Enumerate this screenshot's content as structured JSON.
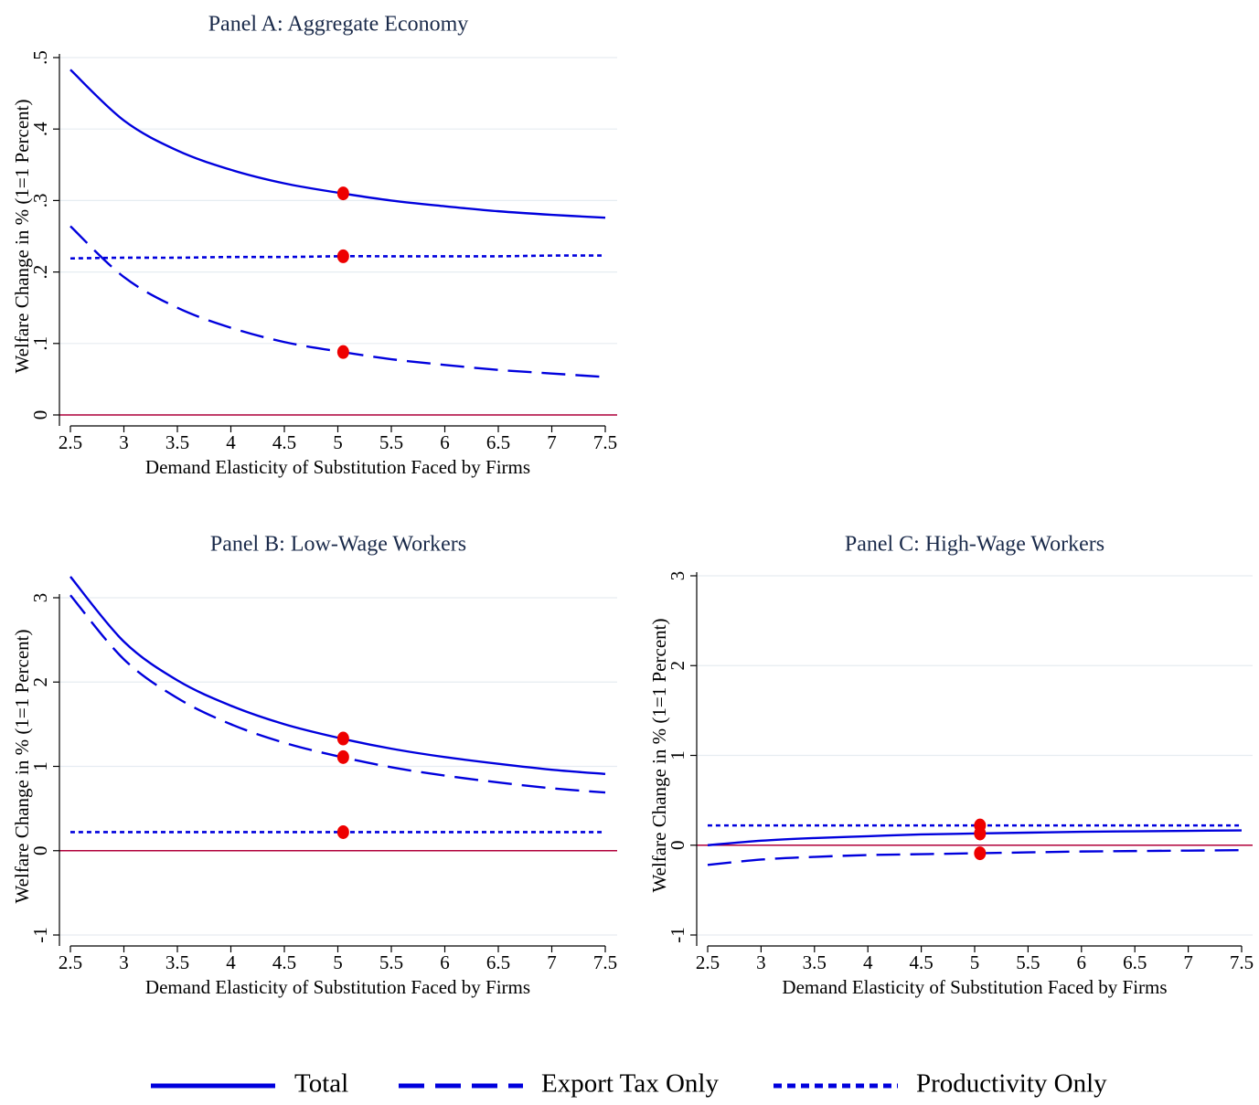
{
  "chart_data": [
    {
      "type": "line",
      "title": "Panel A: Aggregate Economy",
      "xlabel": "Demand Elasticity of Substitution Faced by Firms",
      "ylabel": "Welfare Change in % (1=1 Percent)",
      "xlim": [
        2.5,
        7.5
      ],
      "ylim": [
        0,
        0.5
      ],
      "xticks": [
        2.5,
        3,
        3.5,
        4,
        4.5,
        5,
        5.5,
        6,
        6.5,
        7,
        7.5
      ],
      "xtick_labels": [
        "2.5",
        "3",
        "3.5",
        "4",
        "4.5",
        "5",
        "5.5",
        "6",
        "6.5",
        "7",
        "7.5"
      ],
      "yticks": [
        0,
        0.1,
        0.2,
        0.3,
        0.4,
        0.5
      ],
      "ytick_labels": [
        "0",
        ".1",
        ".2",
        ".3",
        ".4",
        ".5"
      ],
      "grid": true,
      "zero_line": true,
      "x": [
        2.5,
        3,
        3.5,
        4,
        4.5,
        5,
        5.5,
        6,
        6.5,
        7,
        7.5
      ],
      "series": [
        {
          "name": "Total",
          "style": "solid",
          "values": [
            0.483,
            0.412,
            0.37,
            0.343,
            0.324,
            0.311,
            0.3,
            0.292,
            0.285,
            0.28,
            0.276
          ]
        },
        {
          "name": "Export Tax Only",
          "style": "dashed",
          "values": [
            0.264,
            0.193,
            0.15,
            0.122,
            0.102,
            0.089,
            0.078,
            0.07,
            0.063,
            0.058,
            0.053
          ]
        },
        {
          "name": "Productivity Only",
          "style": "dotted",
          "values": [
            0.219,
            0.22,
            0.22,
            0.221,
            0.221,
            0.222,
            0.222,
            0.222,
            0.222,
            0.223,
            0.223
          ]
        }
      ],
      "markers": [
        {
          "x": 5.05,
          "y": 0.31
        },
        {
          "x": 5.05,
          "y": 0.222
        },
        {
          "x": 5.05,
          "y": 0.088
        }
      ]
    },
    {
      "type": "line",
      "title": "Panel B: Low-Wage Workers",
      "xlabel": "Demand Elasticity of Substitution Faced by Firms",
      "ylabel": "Welfare Change in % (1=1 Percent)",
      "xlim": [
        2.5,
        7.5
      ],
      "ylim": [
        -1,
        3
      ],
      "xticks": [
        2.5,
        3,
        3.5,
        4,
        4.5,
        5,
        5.5,
        6,
        6.5,
        7,
        7.5
      ],
      "xtick_labels": [
        "2.5",
        "3",
        "3.5",
        "4",
        "4.5",
        "5",
        "5.5",
        "6",
        "6.5",
        "7",
        "7.5"
      ],
      "yticks": [
        -1,
        0,
        1,
        2,
        3
      ],
      "ytick_labels": [
        "-1",
        "0",
        "1",
        "2",
        "3"
      ],
      "grid": true,
      "zero_line": true,
      "x": [
        2.5,
        3,
        3.5,
        4,
        4.5,
        5,
        5.5,
        6,
        6.5,
        7,
        7.5
      ],
      "series": [
        {
          "name": "Total",
          "style": "solid",
          "values": [
            3.25,
            2.48,
            2.02,
            1.72,
            1.5,
            1.34,
            1.21,
            1.11,
            1.03,
            0.96,
            0.91
          ]
        },
        {
          "name": "Export Tax Only",
          "style": "dashed",
          "values": [
            3.03,
            2.27,
            1.81,
            1.5,
            1.28,
            1.12,
            0.99,
            0.89,
            0.81,
            0.74,
            0.69
          ]
        },
        {
          "name": "Productivity Only",
          "style": "dotted",
          "values": [
            0.22,
            0.22,
            0.22,
            0.22,
            0.22,
            0.22,
            0.22,
            0.22,
            0.22,
            0.22,
            0.22
          ]
        }
      ],
      "markers": [
        {
          "x": 5.05,
          "y": 1.33
        },
        {
          "x": 5.05,
          "y": 1.11
        },
        {
          "x": 5.05,
          "y": 0.22
        }
      ]
    },
    {
      "type": "line",
      "title": "Panel C: High-Wage Workers",
      "xlabel": "Demand Elasticity of Substitution Faced by Firms",
      "ylabel": "Welfare Change in % (1=1 Percent)",
      "xlim": [
        2.5,
        7.5
      ],
      "ylim": [
        -1,
        3
      ],
      "xticks": [
        2.5,
        3,
        3.5,
        4,
        4.5,
        5,
        5.5,
        6,
        6.5,
        7,
        7.5
      ],
      "xtick_labels": [
        "2.5",
        "3",
        "3.5",
        "4",
        "4.5",
        "5",
        "5.5",
        "6",
        "6.5",
        "7",
        "7.5"
      ],
      "yticks": [
        -1,
        0,
        1,
        2,
        3
      ],
      "ytick_labels": [
        "-1",
        "0",
        "1",
        "2",
        "3"
      ],
      "grid": true,
      "zero_line": true,
      "x": [
        2.5,
        3,
        3.5,
        4,
        4.5,
        5,
        5.5,
        6,
        6.5,
        7,
        7.5
      ],
      "series": [
        {
          "name": "Total",
          "style": "solid",
          "values": [
            0.0,
            0.05,
            0.08,
            0.1,
            0.12,
            0.13,
            0.14,
            0.15,
            0.155,
            0.16,
            0.165
          ]
        },
        {
          "name": "Export Tax Only",
          "style": "dashed",
          "values": [
            -0.22,
            -0.16,
            -0.13,
            -0.11,
            -0.1,
            -0.09,
            -0.08,
            -0.07,
            -0.065,
            -0.06,
            -0.055
          ]
        },
        {
          "name": "Productivity Only",
          "style": "dotted",
          "values": [
            0.22,
            0.22,
            0.22,
            0.22,
            0.22,
            0.22,
            0.22,
            0.22,
            0.22,
            0.22,
            0.22
          ]
        }
      ],
      "markers": [
        {
          "x": 5.05,
          "y": 0.22
        },
        {
          "x": 5.05,
          "y": 0.13
        },
        {
          "x": 5.05,
          "y": -0.09
        }
      ]
    }
  ],
  "legend": {
    "position": "bottom",
    "items": [
      {
        "label": "Total",
        "style": "solid"
      },
      {
        "label": "Export Tax Only",
        "style": "dashed"
      },
      {
        "label": "Productivity Only",
        "style": "dotted"
      }
    ]
  },
  "colors": {
    "line": "#0000dd",
    "marker": "#ee0000",
    "zero_line": "#b0003a",
    "grid": "#e6ecf1",
    "title": "#1a2a4a"
  }
}
